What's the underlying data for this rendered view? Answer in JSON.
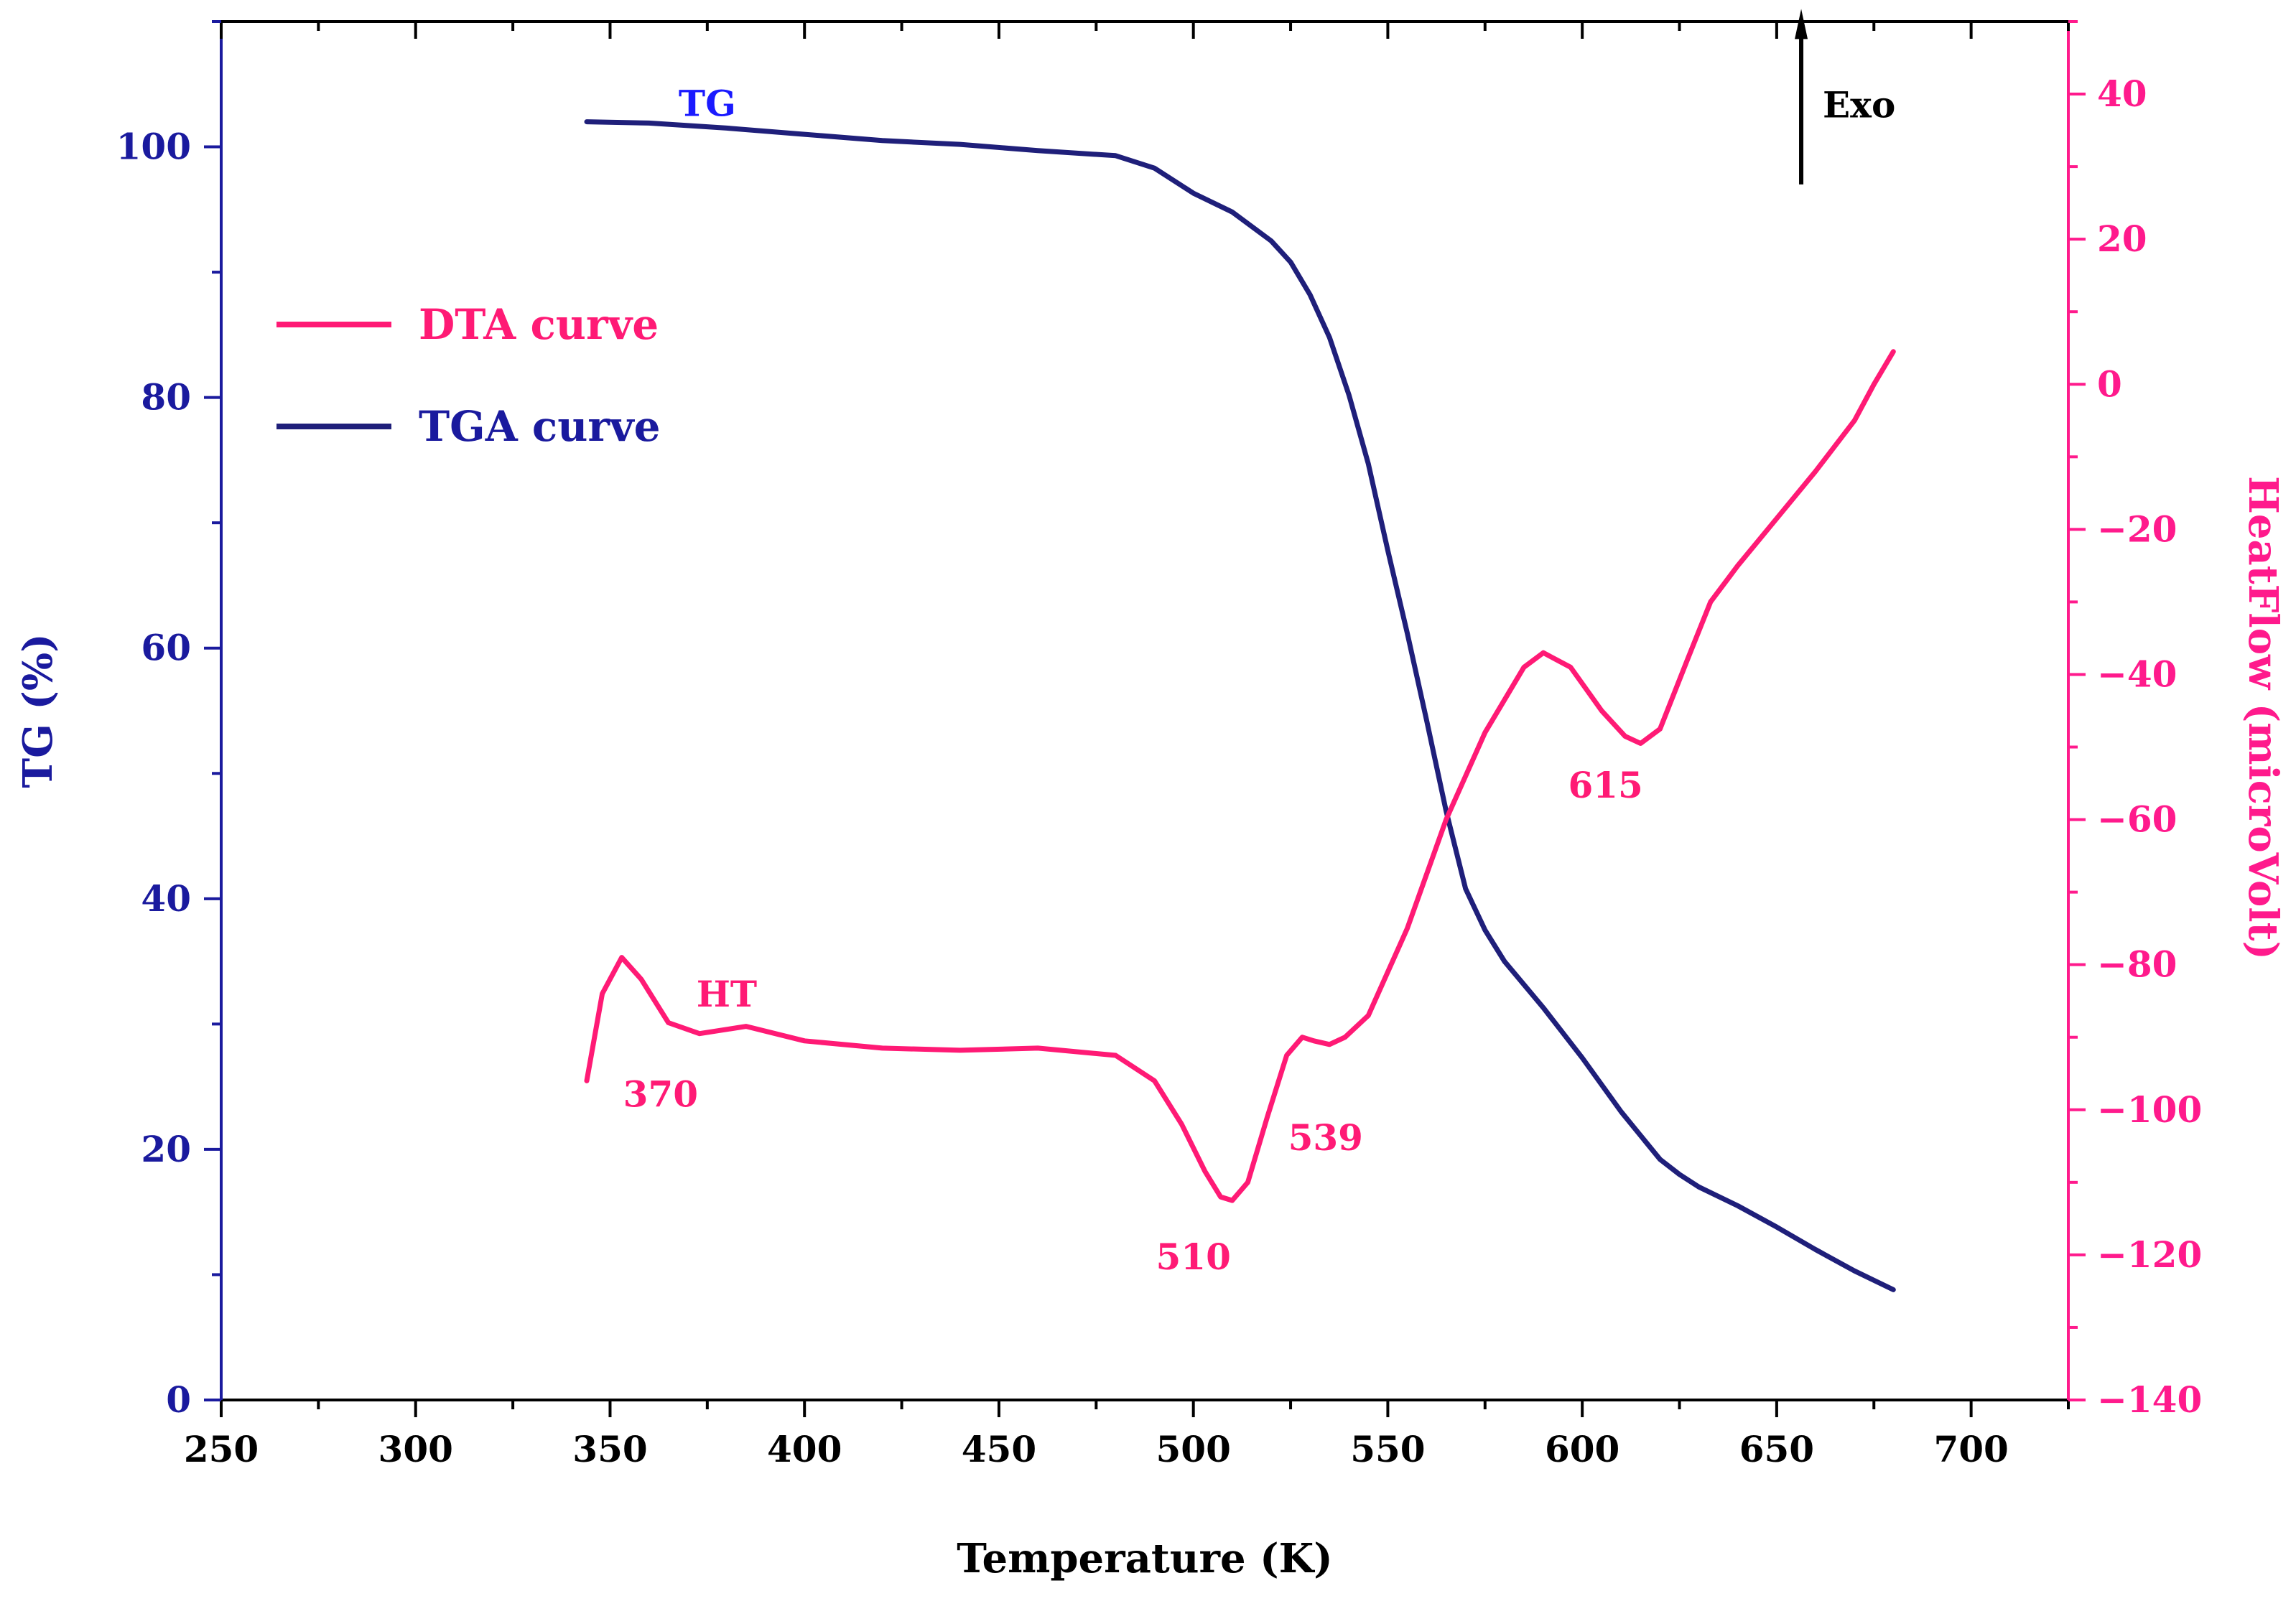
{
  "chart_data": {
    "type": "line",
    "title": "",
    "xlabel": "Temperature (K)",
    "ylabel_left": "TG (%)",
    "ylabel_right": "HeatFlow (microVolt)",
    "xlim": [
      250,
      725
    ],
    "ylim_left": [
      0,
      110
    ],
    "ylim_right": [
      -140,
      50
    ],
    "xticks": [
      250,
      300,
      350,
      400,
      450,
      500,
      550,
      600,
      650,
      700
    ],
    "yticks_left": [
      0,
      20,
      40,
      60,
      80,
      100
    ],
    "yticks_right": [
      -140,
      -120,
      -100,
      -80,
      -60,
      -40,
      -20,
      0,
      20,
      40
    ],
    "colors": {
      "tga": "#1f1f7a",
      "dta": "#ff1a75",
      "left_axis": "#1a1a9e",
      "right_axis": "#ff1a8c",
      "text": "#000000"
    },
    "legend": [
      {
        "label": "DTA curve",
        "color": "#ff1a75"
      },
      {
        "label": "TGA curve",
        "color": "#1f1f7a"
      }
    ],
    "series": [
      {
        "name": "TGA curve",
        "axis": "left",
        "x": [
          344,
          360,
          380,
          400,
          420,
          440,
          460,
          480,
          490,
          500,
          510,
          520,
          525,
          530,
          535,
          540,
          545,
          550,
          555,
          560,
          565,
          570,
          575,
          580,
          590,
          600,
          610,
          620,
          625,
          630,
          640,
          650,
          660,
          670,
          680
        ],
        "y": [
          102,
          101.9,
          101.5,
          101,
          100.5,
          100.2,
          99.7,
          99.3,
          98.3,
          96.3,
          94.8,
          92.5,
          90.8,
          88.2,
          84.8,
          80.2,
          74.7,
          67.8,
          61.2,
          54.2,
          47,
          40.8,
          37.5,
          35,
          31.3,
          27.3,
          23,
          19.2,
          18,
          17,
          15.5,
          13.8,
          12,
          10.3,
          8.8
        ]
      },
      {
        "name": "DTA curve",
        "axis": "right",
        "x": [
          344,
          348,
          353,
          358,
          365,
          373,
          385,
          400,
          420,
          440,
          460,
          480,
          490,
          497,
          503,
          507,
          510,
          514,
          519,
          524,
          528,
          531,
          535,
          539,
          545,
          555,
          565,
          575,
          585,
          590,
          597,
          605,
          611,
          615,
          620,
          627,
          633,
          640,
          650,
          660,
          670,
          675,
          680
        ],
        "y": [
          -96,
          -84,
          -79,
          -82,
          -88,
          -89.5,
          -88.5,
          -90.5,
          -91.5,
          -91.8,
          -91.5,
          -92.5,
          -96,
          -102,
          -108.5,
          -112,
          -112.5,
          -110,
          -101,
          -92.5,
          -90,
          -90.5,
          -91,
          -90,
          -87,
          -75,
          -60,
          -48,
          -39,
          -37,
          -39,
          -45,
          -48.5,
          -49.5,
          -47.5,
          -38,
          -30,
          -25,
          -18.5,
          -12,
          -5,
          0,
          4.5
        ]
      }
    ],
    "annotations": [
      {
        "text": "TG",
        "color": "#1a1aff",
        "x": 375,
        "y_left": 103.5
      },
      {
        "text": "Exo",
        "color": "#000000",
        "x": 660,
        "y_left": 103.5
      },
      {
        "text": "HT",
        "color": "#ff1a75",
        "x": 380,
        "y_right": -84
      },
      {
        "text": "370",
        "color": "#ff1a75",
        "x": 363,
        "y_right": -97.8
      },
      {
        "text": "510",
        "color": "#ff1a75",
        "x": 500,
        "y_right": -120.2
      },
      {
        "text": "539",
        "color": "#ff1a75",
        "x": 534,
        "y_right": -103.8
      },
      {
        "text": "615",
        "color": "#ff1a75",
        "x": 606,
        "y_right": -55.2
      }
    ]
  }
}
